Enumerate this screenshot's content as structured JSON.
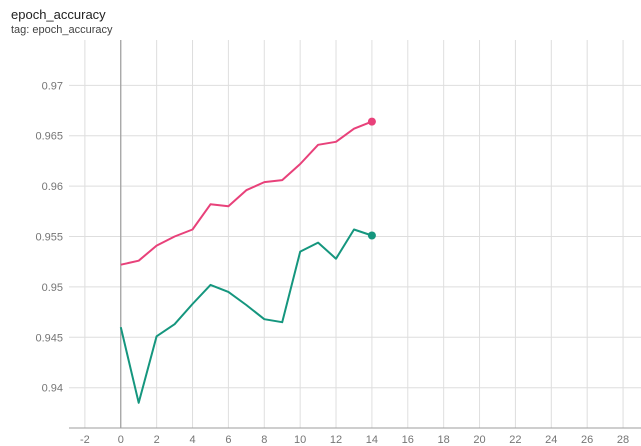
{
  "card": {
    "title": "epoch_accuracy",
    "subtitle": "tag: epoch_accuracy"
  },
  "chart_data": {
    "type": "line",
    "title": "epoch_accuracy",
    "subtitle": "tag: epoch_accuracy",
    "xlabel": "",
    "ylabel": "",
    "xlim": [
      -4,
      29
    ],
    "ylim": [
      0.936,
      0.9745
    ],
    "x_ticks": [
      -2,
      0,
      2,
      4,
      6,
      8,
      10,
      12,
      14,
      16,
      18,
      20,
      22,
      24,
      26,
      28
    ],
    "y_ticks": [
      0.94,
      0.945,
      0.95,
      0.955,
      0.96,
      0.965,
      0.97
    ],
    "y_tick_labels": [
      "0.94",
      "0.945",
      "0.95",
      "0.955",
      "0.96",
      "0.965",
      "0.97"
    ],
    "grid": true,
    "x": [
      0,
      1,
      2,
      3,
      4,
      5,
      6,
      7,
      8,
      9,
      10,
      11,
      12,
      13,
      14
    ],
    "series": [
      {
        "color": "#e8417a",
        "values": [
          0.9522,
          0.9526,
          0.9541,
          0.955,
          0.9557,
          0.9582,
          0.958,
          0.9596,
          0.9604,
          0.9606,
          0.9622,
          0.9641,
          0.9644,
          0.9657,
          0.9664
        ]
      },
      {
        "color": "#15967e",
        "values": [
          0.946,
          0.9385,
          0.9451,
          0.9463,
          0.9483,
          0.9502,
          0.9495,
          0.9482,
          0.9468,
          0.9465,
          0.9535,
          0.9544,
          0.9528,
          0.9557,
          0.9551
        ]
      }
    ]
  }
}
